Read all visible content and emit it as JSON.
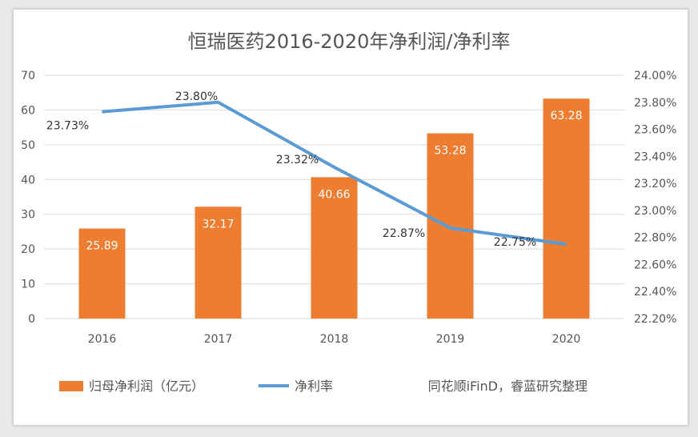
{
  "chart_data": {
    "type": "bar+line",
    "title": "恒瑞医药2016-2020年净利润/净利率",
    "categories": [
      "2016",
      "2017",
      "2018",
      "2019",
      "2020"
    ],
    "series": [
      {
        "name": "归母净利润（亿元）",
        "type": "bar",
        "axis": "left",
        "color": "#ED7D31",
        "values": [
          25.89,
          32.17,
          40.66,
          53.28,
          63.28
        ],
        "labels": [
          "25.89",
          "32.17",
          "40.66",
          "53.28",
          "63.28"
        ]
      },
      {
        "name": "净利率",
        "type": "line",
        "axis": "right",
        "color": "#5B9BD5",
        "values": [
          23.73,
          23.8,
          23.32,
          22.87,
          22.75
        ],
        "labels": [
          "23.73%",
          "23.80%",
          "23.32%",
          "22.87%",
          "22.75%"
        ]
      }
    ],
    "left_axis": {
      "ylim": [
        0,
        70
      ],
      "ticks": [
        "0",
        "10",
        "20",
        "30",
        "40",
        "50",
        "60",
        "70"
      ]
    },
    "right_axis": {
      "ylim": [
        22.2,
        24.0
      ],
      "ticks": [
        "22.20%",
        "22.40%",
        "22.60%",
        "22.80%",
        "23.00%",
        "23.20%",
        "23.40%",
        "23.60%",
        "23.80%",
        "24.00%"
      ]
    },
    "grid": true,
    "legend": "bottom",
    "source": "同花顺iFinD，睿蓝研究整理"
  }
}
